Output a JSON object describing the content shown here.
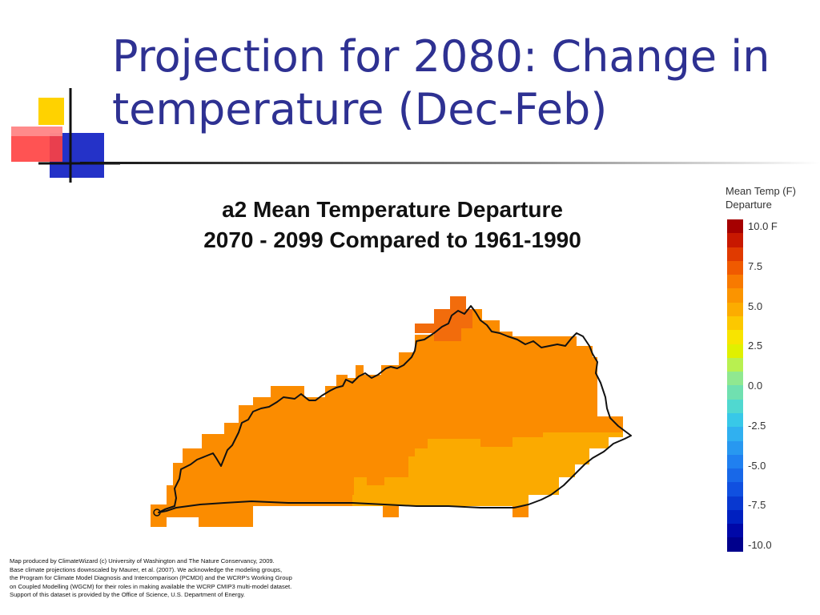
{
  "slide": {
    "title_line1": "Projection for 2080: Change in",
    "title_line2": "temperature (Dec-Feb)"
  },
  "map": {
    "title_line1": "a2 Mean Temperature Departure",
    "title_line2": "2070 - 2099 Compared to 1961-1990",
    "region_colors": {
      "main": "#fb8c00",
      "southeast": "#fbaa00",
      "northeast_tip": "#f26c0c",
      "outline": "#111111"
    }
  },
  "legend": {
    "title_line1": "Mean Temp (F)",
    "title_line2": "Departure",
    "ticks": [
      {
        "label": "10.0  F",
        "value": 10.0
      },
      {
        "label": "7.5",
        "value": 7.5
      },
      {
        "label": "5.0",
        "value": 5.0
      },
      {
        "label": "2.5",
        "value": 2.5
      },
      {
        "label": "0.0",
        "value": 0.0
      },
      {
        "label": "-2.5",
        "value": -2.5
      },
      {
        "label": "-5.0",
        "value": -5.0
      },
      {
        "label": "-7.5",
        "value": -7.5
      },
      {
        "label": "-10.0",
        "value": -10.0
      }
    ],
    "colors": [
      "#a50000",
      "#c81800",
      "#e03a00",
      "#f05a00",
      "#f87a00",
      "#fb9400",
      "#fcac00",
      "#fcc800",
      "#f8e400",
      "#e0f000",
      "#b8f050",
      "#90e890",
      "#70e0b0",
      "#50d8d0",
      "#38c8e8",
      "#30b0f0",
      "#2898f0",
      "#2080f0",
      "#1868e8",
      "#1050e0",
      "#0838d0",
      "#0020c0",
      "#0008a8",
      "#00008c"
    ]
  },
  "credits": {
    "line1": "Map produced by ClimateWizard (c) University of Washington and The Nature Conservancy, 2009.",
    "line2": "Base climate projections downscaled by Maurer, et al. (2007). We acknowledge the modeling groups,",
    "line3": "the Program for Climate Model Diagnosis and Intercomparison (PCMDI) and the WCRP's Working Group",
    "line4": "on Coupled Modelling (WGCM) for their roles in making available the WCRP CMIP3 multi-model dataset.",
    "line5": "Support of this dataset is provided by the Office of Science, U.S. Department of Energy."
  }
}
